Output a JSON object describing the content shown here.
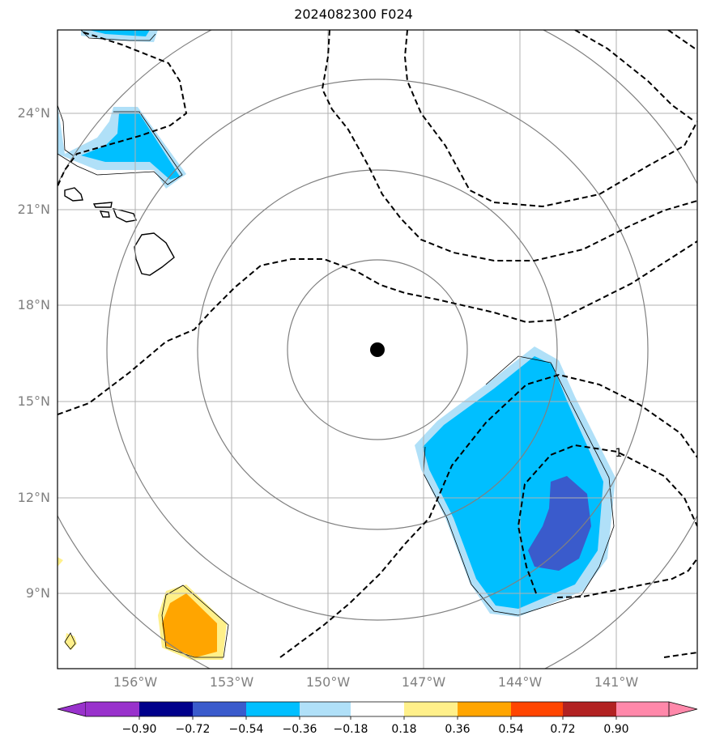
{
  "title": "2024082300 F024",
  "lat_labels": [
    "24°N",
    "21°N",
    "18°N",
    "15°N",
    "12°N",
    "9°N"
  ],
  "lon_labels": [
    "156°W",
    "153°W",
    "150°W",
    "147°W",
    "144°W",
    "141°W"
  ],
  "contour_label": "1",
  "colorbar": {
    "ticks": [
      "−0.90",
      "−0.72",
      "−0.54",
      "−0.36",
      "−0.18",
      "0.18",
      "0.36",
      "0.54",
      "0.72",
      "0.90"
    ],
    "colors": [
      "#9932cc",
      "#00008b",
      "#3a5bcc",
      "#00bfff",
      "#b0e0f8",
      "#ffffff",
      "#fff08a",
      "#ffa500",
      "#ff4500",
      "#b22222",
      "#ff88aa"
    ]
  },
  "fill_colors": {
    "light_blue": "#b0e0f8",
    "blue": "#00bfff",
    "dark_blue": "#3a5bcc",
    "yellow": "#fff08a",
    "orange": "#ffa500"
  }
}
